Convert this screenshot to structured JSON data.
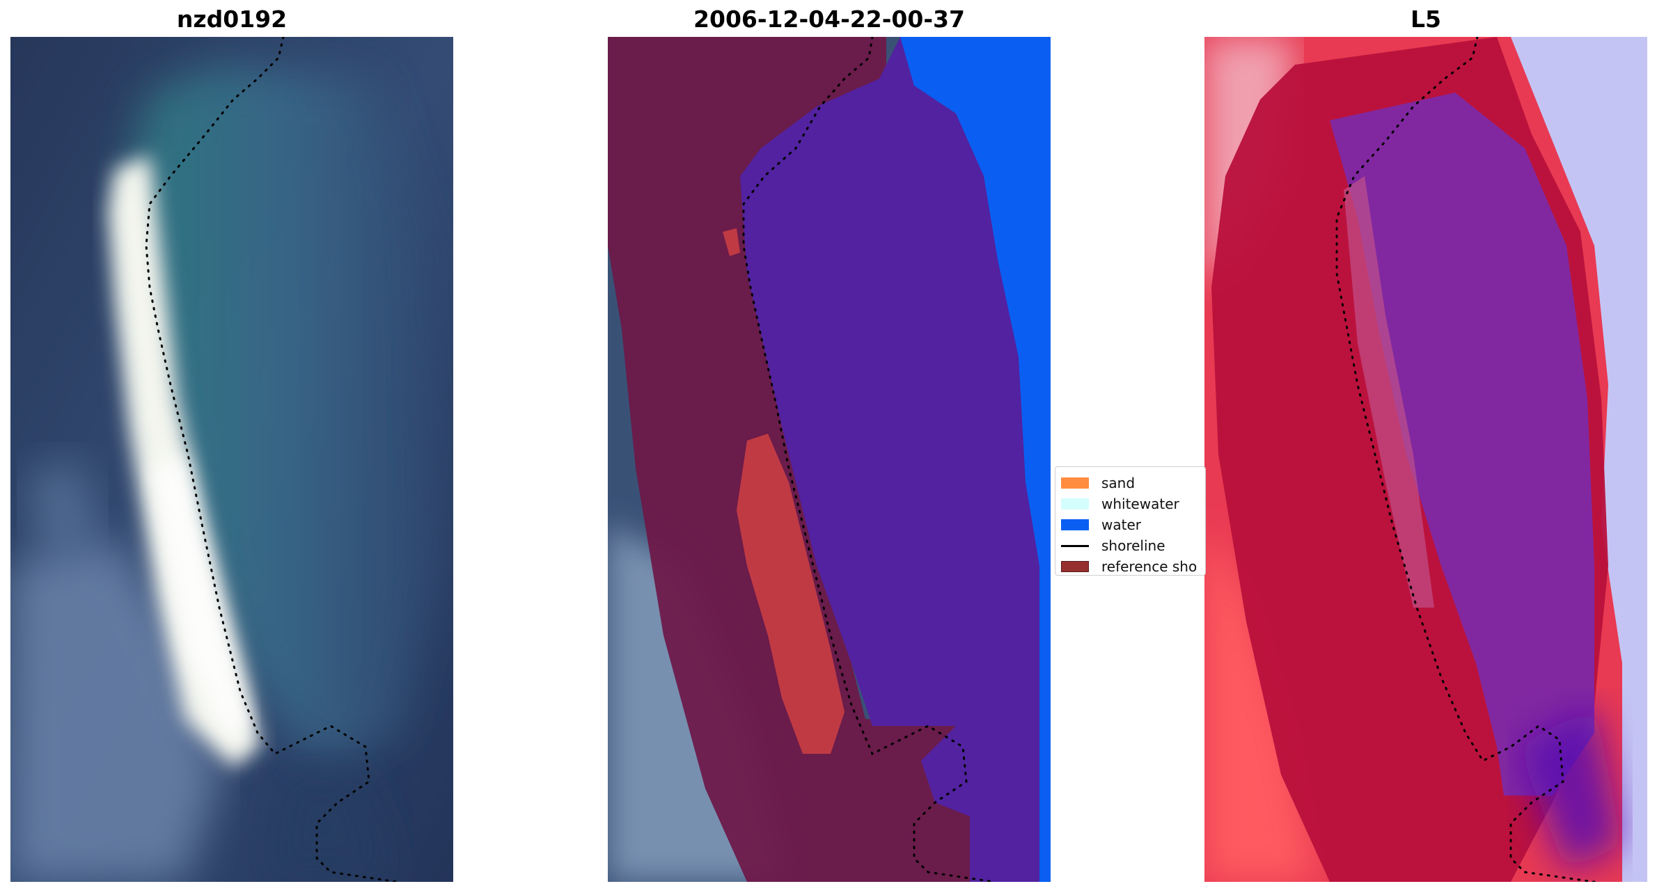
{
  "panels": [
    {
      "title": "nzd0192",
      "kind": "rgb-image"
    },
    {
      "title": "2006-12-04-22-00-37",
      "kind": "classified-image"
    },
    {
      "title": "L5",
      "kind": "index-image"
    }
  ],
  "legend": {
    "items": [
      {
        "label": "sand",
        "color": "#ff8c3f",
        "type": "patch"
      },
      {
        "label": "whitewater",
        "color": "#d4fdfd",
        "type": "patch"
      },
      {
        "label": "water",
        "color": "#0a5ff2",
        "type": "patch"
      },
      {
        "label": "shoreline",
        "color": "#000000",
        "type": "line"
      },
      {
        "label": "reference sho",
        "color": "#96302f",
        "type": "patch"
      }
    ]
  },
  "colors": {
    "shoreline_overlay": "#000000",
    "class_water": "#0a5ff2",
    "class_ocean_overlay": "#5222a0",
    "class_land_overlay": "#6e1848",
    "class_sand_overlay": "#c03a44"
  }
}
